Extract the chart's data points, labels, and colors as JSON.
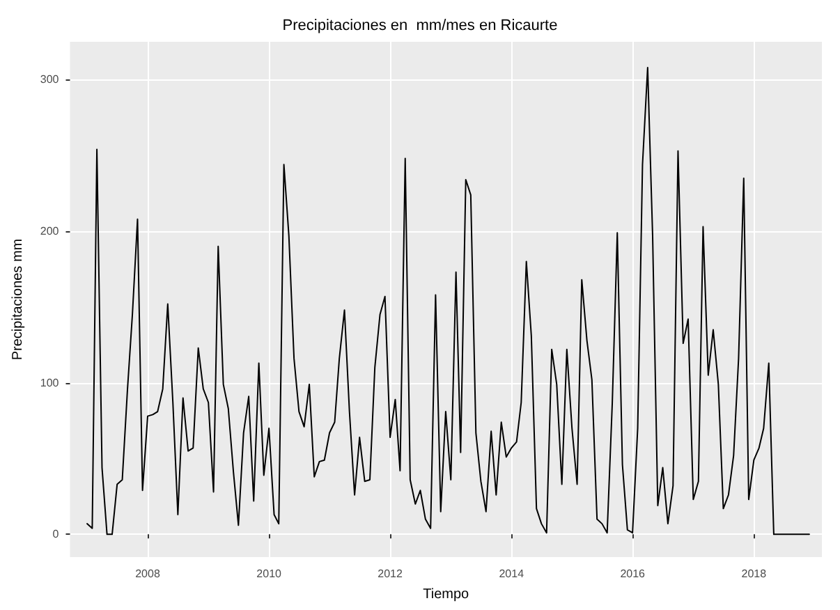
{
  "chart_data": {
    "type": "line",
    "title": "Precipitaciones en  mm/mes en Ricaurte",
    "xlabel": "Tiempo",
    "ylabel": "Precipitaciones mm",
    "x": [
      "2007-01",
      "2007-02",
      "2007-03",
      "2007-04",
      "2007-05",
      "2007-06",
      "2007-07",
      "2007-08",
      "2007-09",
      "2007-10",
      "2007-11",
      "2007-12",
      "2008-01",
      "2008-02",
      "2008-03",
      "2008-04",
      "2008-05",
      "2008-06",
      "2008-07",
      "2008-08",
      "2008-09",
      "2008-10",
      "2008-11",
      "2008-12",
      "2009-01",
      "2009-02",
      "2009-03",
      "2009-04",
      "2009-05",
      "2009-06",
      "2009-07",
      "2009-08",
      "2009-09",
      "2009-10",
      "2009-11",
      "2009-12",
      "2010-01",
      "2010-02",
      "2010-03",
      "2010-04",
      "2010-05",
      "2010-06",
      "2010-07",
      "2010-08",
      "2010-09",
      "2010-10",
      "2010-11",
      "2010-12",
      "2011-01",
      "2011-02",
      "2011-03",
      "2011-04",
      "2011-05",
      "2011-06",
      "2011-07",
      "2011-08",
      "2011-09",
      "2011-10",
      "2011-11",
      "2011-12",
      "2012-01",
      "2012-02",
      "2012-03",
      "2012-04",
      "2012-05",
      "2012-06",
      "2012-07",
      "2012-08",
      "2012-09",
      "2012-10",
      "2012-11",
      "2012-12",
      "2013-01",
      "2013-02",
      "2013-03",
      "2013-04",
      "2013-05",
      "2013-06",
      "2013-07",
      "2013-08",
      "2013-09",
      "2013-10",
      "2013-11",
      "2013-12",
      "2014-01",
      "2014-02",
      "2014-03",
      "2014-04",
      "2014-05",
      "2014-06",
      "2014-07",
      "2014-08",
      "2014-09",
      "2014-10",
      "2014-11",
      "2014-12",
      "2015-01",
      "2015-02",
      "2015-03",
      "2015-04",
      "2015-05",
      "2015-06",
      "2015-07",
      "2015-08",
      "2015-09",
      "2015-10",
      "2015-11",
      "2015-12",
      "2016-01",
      "2016-02",
      "2016-03",
      "2016-04",
      "2016-05",
      "2016-06",
      "2016-07",
      "2016-08",
      "2016-09",
      "2016-10",
      "2016-11",
      "2016-12",
      "2017-01",
      "2017-02",
      "2017-03",
      "2017-04",
      "2017-05",
      "2017-06",
      "2017-07",
      "2017-08",
      "2017-09",
      "2017-10",
      "2017-11",
      "2017-12",
      "2018-01",
      "2018-02",
      "2018-03",
      "2018-04",
      "2018-05",
      "2018-06",
      "2018-07",
      "2018-08",
      "2018-09",
      "2018-10",
      "2018-11",
      "2018-12"
    ],
    "series": [
      {
        "color": "#000000",
        "values": [
          7,
          4,
          254,
          44,
          0,
          0,
          33,
          36,
          95,
          145,
          208,
          29,
          78,
          79,
          81,
          96,
          152,
          87,
          13,
          90,
          55,
          57,
          123,
          96,
          87,
          28,
          190,
          99,
          83,
          41,
          6,
          67,
          91,
          22,
          113,
          39,
          70,
          13,
          7,
          244,
          197,
          116,
          81,
          71,
          99,
          38,
          48,
          49,
          67,
          74,
          116,
          148,
          81,
          26,
          64,
          35,
          36,
          110,
          145,
          157,
          64,
          89,
          42,
          248,
          36,
          20,
          29,
          10,
          4,
          158,
          15,
          81,
          36,
          173,
          54,
          234,
          224,
          67,
          35,
          15,
          68,
          26,
          74,
          51,
          57,
          61,
          87,
          180,
          131,
          17,
          7,
          1,
          122,
          99,
          33,
          122,
          70,
          33,
          168,
          128,
          102,
          10,
          7,
          1,
          87,
          199,
          46,
          3,
          1,
          70,
          244,
          308,
          197,
          19,
          44,
          7,
          32,
          253,
          126,
          142,
          23,
          35,
          203,
          105,
          135,
          99,
          17,
          26,
          52,
          116,
          235,
          23,
          49,
          57,
          70,
          113,
          0,
          0,
          0,
          0,
          0,
          0,
          0,
          0
        ]
      }
    ],
    "xlim": [
      "2006-09-20",
      "2019-02-15"
    ],
    "xticks": [
      "2008",
      "2010",
      "2012",
      "2014",
      "2016",
      "2018"
    ],
    "ylim": [
      -15,
      325
    ],
    "yticks": [
      0,
      100,
      200,
      300
    ],
    "grid": true,
    "marker": "none",
    "line_style": "solid"
  }
}
